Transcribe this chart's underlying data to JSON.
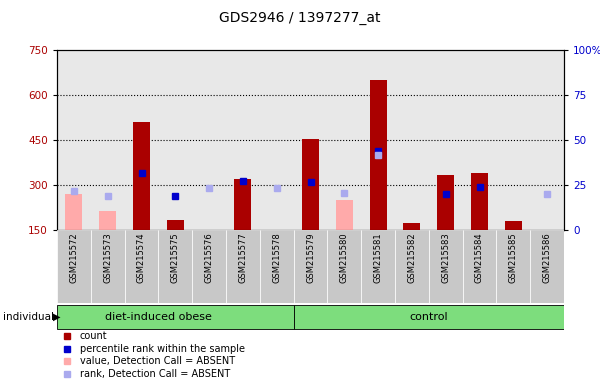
{
  "title": "GDS2946 / 1397277_at",
  "samples": [
    "GSM215572",
    "GSM215573",
    "GSM215574",
    "GSM215575",
    "GSM215576",
    "GSM215577",
    "GSM215578",
    "GSM215579",
    "GSM215580",
    "GSM215581",
    "GSM215582",
    "GSM215583",
    "GSM215584",
    "GSM215585",
    "GSM215586"
  ],
  "count_values": [
    null,
    null,
    510,
    185,
    null,
    320,
    null,
    455,
    null,
    650,
    175,
    335,
    340,
    180,
    null
  ],
  "count_absent_values": [
    270,
    215,
    null,
    null,
    null,
    null,
    null,
    null,
    250,
    null,
    null,
    null,
    null,
    null,
    null
  ],
  "percentile_values": [
    null,
    null,
    340,
    265,
    null,
    315,
    null,
    310,
    null,
    415,
    null,
    270,
    295,
    null,
    null
  ],
  "percentile_absent_values": [
    280,
    265,
    null,
    null,
    290,
    null,
    290,
    null,
    275,
    400,
    null,
    null,
    null,
    null,
    270
  ],
  "ylim_left": [
    150,
    750
  ],
  "yticks_left": [
    150,
    300,
    450,
    600,
    750
  ],
  "yticks_right": [
    0,
    25,
    50,
    75,
    100
  ],
  "group1_count": 7,
  "group1_label": "diet-induced obese",
  "group2_label": "control",
  "plot_bg": "#e8e8e8",
  "group_color": "#7ddd7d",
  "sample_bg": "#c8c8c8",
  "bar_width": 0.5,
  "count_color": "#aa0000",
  "count_absent_color": "#ffaaaa",
  "percentile_color": "#0000cc",
  "percentile_absent_color": "#aaaaee",
  "grid_color": "black",
  "grid_style": ":",
  "gridlines": [
    300,
    450,
    600
  ]
}
